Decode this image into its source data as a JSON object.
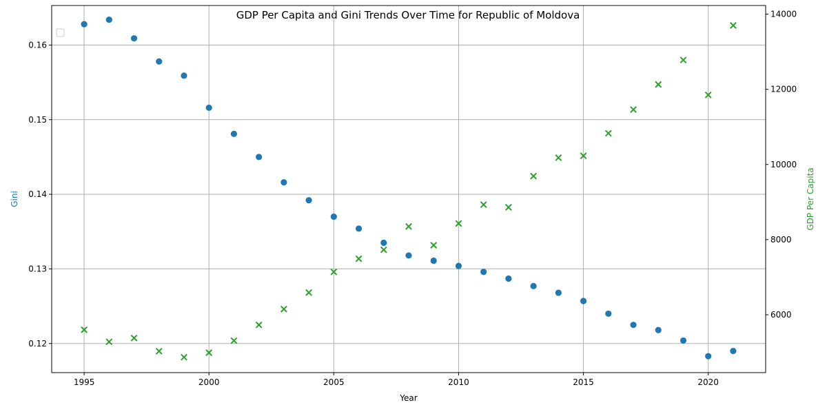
{
  "chart_data": {
    "type": "scatter",
    "title": "GDP Per Capita and Gini Trends Over Time for Republic of Moldova",
    "xlabel": "Year",
    "ylabel_left": "Gini",
    "ylabel_right": "GDP Per Capita",
    "xlim": [
      1993.7,
      2022.3
    ],
    "ylim_left": [
      0.1161,
      0.1653
    ],
    "ylim_right": [
      4460,
      14230
    ],
    "x_ticks": [
      1995,
      2000,
      2005,
      2010,
      2015,
      2020
    ],
    "y_left_ticks": [
      0.12,
      0.13,
      0.14,
      0.15,
      0.16
    ],
    "y_right_ticks": [
      6000,
      8000,
      10000,
      12000,
      14000
    ],
    "grid": true,
    "legend": "top-left, empty",
    "colors": {
      "gini": "#1f77b4",
      "gdp": "#2ca02c"
    },
    "x": [
      1995,
      1996,
      1997,
      1998,
      1999,
      2000,
      2001,
      2002,
      2003,
      2004,
      2005,
      2006,
      2007,
      2008,
      2009,
      2010,
      2011,
      2012,
      2013,
      2014,
      2015,
      2016,
      2017,
      2018,
      2019,
      2020,
      2021
    ],
    "series": [
      {
        "key": "gini",
        "axis": "left",
        "marker": "circle",
        "values": [
          0.1628,
          0.1634,
          0.1609,
          0.1578,
          0.1559,
          0.1516,
          0.1481,
          0.145,
          0.1416,
          0.1392,
          0.137,
          0.1354,
          0.1335,
          0.1318,
          0.1311,
          0.1304,
          0.1296,
          0.1287,
          0.1277,
          0.1268,
          0.1257,
          0.124,
          0.1225,
          0.1218,
          0.1204,
          0.1183,
          0.119
        ]
      },
      {
        "key": "gdp",
        "axis": "right",
        "marker": "x",
        "values": [
          5600,
          5280,
          5380,
          5030,
          4870,
          4990,
          5310,
          5730,
          6150,
          6590,
          7140,
          7490,
          7730,
          8350,
          7850,
          8430,
          8930,
          8860,
          9690,
          10180,
          10230,
          10830,
          11460,
          12130,
          12780,
          11850,
          13700
        ]
      }
    ]
  }
}
